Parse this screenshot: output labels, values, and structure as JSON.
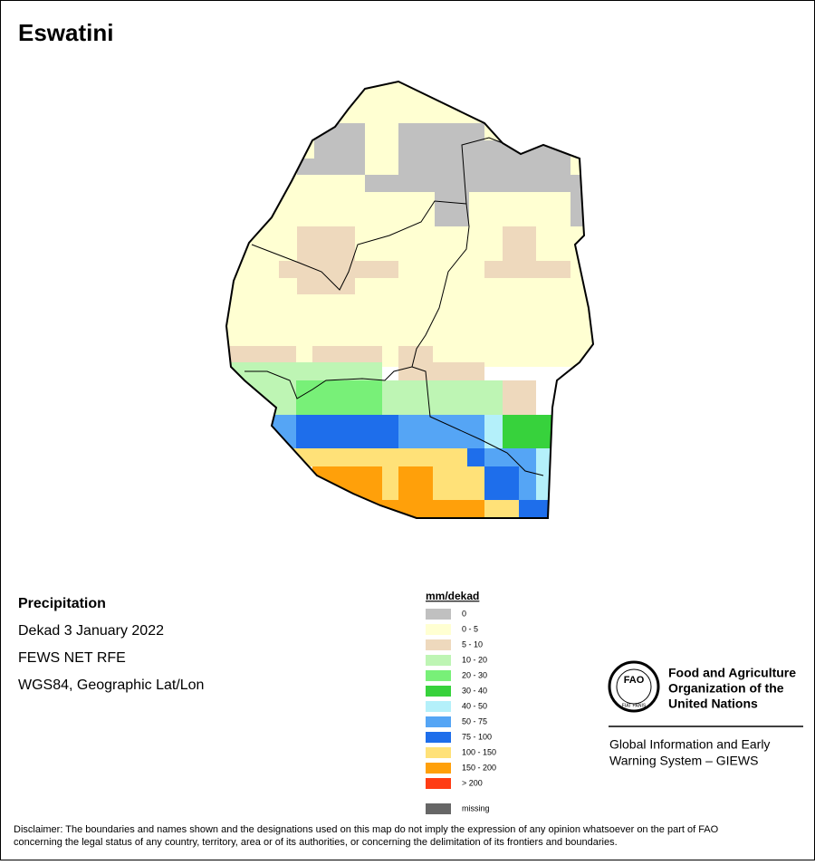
{
  "header": {
    "title": "Eswatini"
  },
  "info": {
    "heading": "Precipitation",
    "lines": [
      "Dekad 3 January 2022",
      "FEWS NET RFE",
      "WGS84, Geographic Lat/Lon"
    ]
  },
  "legend": {
    "title": "mm/dekad",
    "items": [
      {
        "label": "0",
        "color": "#c0c0c0"
      },
      {
        "label": "0 - 5",
        "color": "#ffffd2"
      },
      {
        "label": "5 - 10",
        "color": "#eed9bd"
      },
      {
        "label": "10 - 20",
        "color": "#bef5b4"
      },
      {
        "label": "20 - 30",
        "color": "#78f078"
      },
      {
        "label": "30 - 40",
        "color": "#37d23c"
      },
      {
        "label": "40 - 50",
        "color": "#b4f0fa"
      },
      {
        "label": "50 - 75",
        "color": "#55a5f5"
      },
      {
        "label": "75 - 100",
        "color": "#1e6eeb"
      },
      {
        "label": "100 - 150",
        "color": "#ffe178"
      },
      {
        "label": "150 - 200",
        "color": "#ffa00a"
      },
      {
        "label": "> 200",
        "color": "#ff3c14"
      }
    ],
    "missing": {
      "label": "missing",
      "color": "#666666"
    }
  },
  "logo": {
    "letters": "FAO",
    "ring": "FIAT PANIS",
    "org": [
      "Food and Agriculture",
      "Organization of the",
      "United Nations"
    ],
    "system": [
      "Global Information and Early",
      "Warning System – GIEWS"
    ]
  },
  "disclaimer": [
    "Disclaimer: The boundaries and names shown and the designations used on this map do not imply the expression of any opinion whatsoever on the part of FAO",
    "concerning the legal status of any country, territory, area or of its authorities, or concerning the delimitation of its frontiers and boundaries."
  ]
}
